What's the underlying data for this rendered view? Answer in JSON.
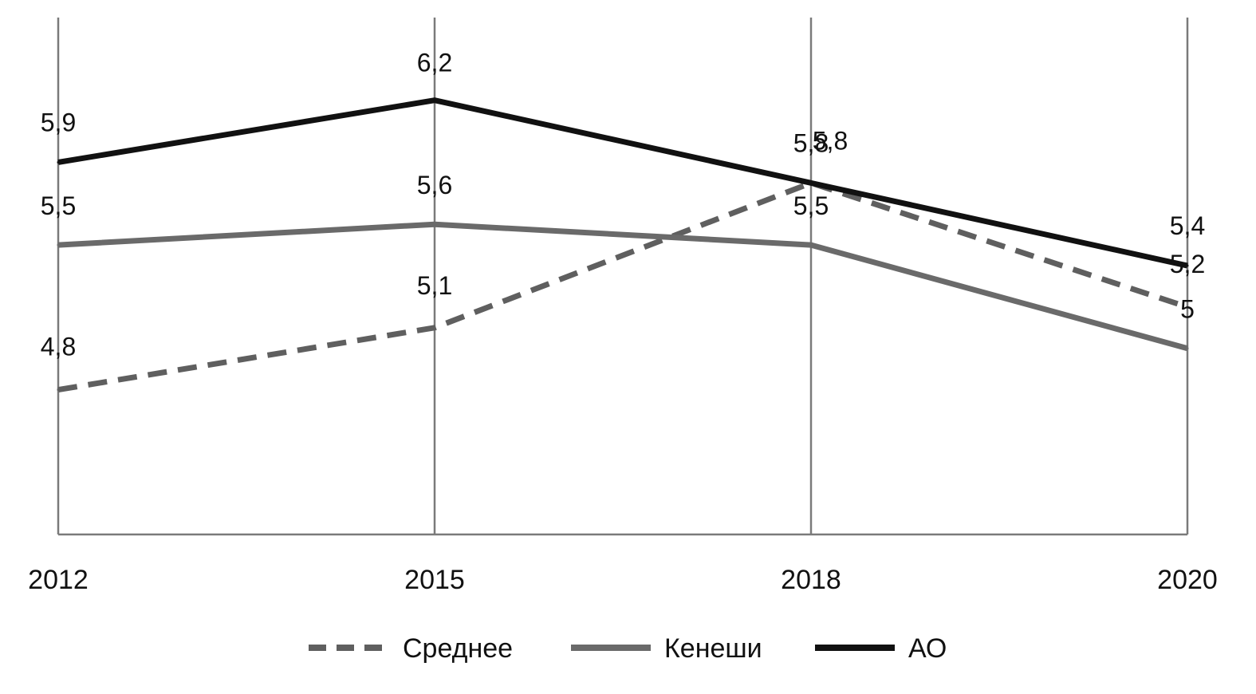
{
  "chart_data": {
    "type": "line",
    "title": "",
    "xlabel": "",
    "ylabel": "",
    "categories": [
      "2012",
      "2015",
      "2018",
      "2020"
    ],
    "ylim": [
      4.1,
      6.6
    ],
    "grid": "vertical",
    "legend_position": "bottom",
    "series": [
      {
        "name": "Среднее",
        "values": [
          4.8,
          5.1,
          5.8,
          5.2
        ],
        "labels": [
          "4,8",
          "5,1",
          "5,8",
          "5,2"
        ],
        "color": "#5f5f5f",
        "style": "dashed"
      },
      {
        "name": "Кенеши",
        "values": [
          5.5,
          5.6,
          5.5,
          5
        ],
        "labels": [
          "5,5",
          "5,6",
          "5,5",
          "5"
        ],
        "color": "#6a6a6a",
        "style": "solid"
      },
      {
        "name": "АО",
        "values": [
          5.9,
          6.2,
          5.8,
          5.4
        ],
        "labels": [
          "5,9",
          "6,2",
          "5,8",
          "5,4"
        ],
        "color": "#111111",
        "style": "solid"
      }
    ]
  }
}
